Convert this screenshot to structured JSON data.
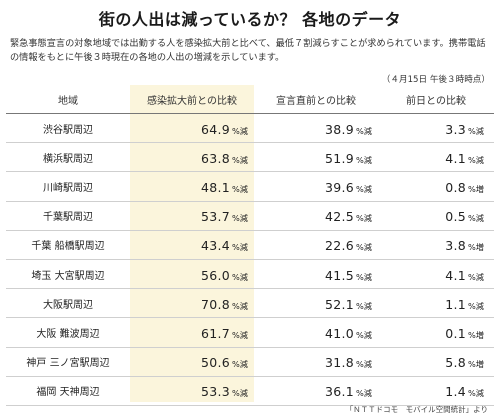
{
  "title": "街の人出は減っているか？ 各地のデータ",
  "lead": "緊急事態宣言の対象地域では出勤する人を感染拡大前と比べて、最低７割減らすことが求められています。携帯電話の情報をもとに午後３時現在の各地の人出の増減を示しています。",
  "as_of": "（４月15日 午後３時時点）",
  "table": {
    "headers": [
      "地域",
      "感染拡大前との比較",
      "宣言直前との比較",
      "前日との比較"
    ],
    "rows": [
      {
        "area": "渋谷駅周辺",
        "pre": "64.9",
        "pre_u": "%減",
        "decl": "38.9",
        "decl_u": "%減",
        "prev": "3.3",
        "prev_u": "%減"
      },
      {
        "area": "横浜駅周辺",
        "pre": "63.8",
        "pre_u": "%減",
        "decl": "51.9",
        "decl_u": "%減",
        "prev": "4.1",
        "prev_u": "%減"
      },
      {
        "area": "川崎駅周辺",
        "pre": "48.1",
        "pre_u": "%減",
        "decl": "39.6",
        "decl_u": "%減",
        "prev": "0.8",
        "prev_u": "%増"
      },
      {
        "area": "千葉駅周辺",
        "pre": "53.7",
        "pre_u": "%減",
        "decl": "42.5",
        "decl_u": "%減",
        "prev": "0.5",
        "prev_u": "%減"
      },
      {
        "area": "千葉 船橋駅周辺",
        "pre": "43.4",
        "pre_u": "%減",
        "decl": "22.6",
        "decl_u": "%減",
        "prev": "3.8",
        "prev_u": "%増"
      },
      {
        "area": "埼玉 大宮駅周辺",
        "pre": "56.0",
        "pre_u": "%減",
        "decl": "41.5",
        "decl_u": "%減",
        "prev": "4.1",
        "prev_u": "%減"
      },
      {
        "area": "大阪駅周辺",
        "pre": "70.8",
        "pre_u": "%減",
        "decl": "52.1",
        "decl_u": "%減",
        "prev": "1.1",
        "prev_u": "%減"
      },
      {
        "area": "大阪 難波周辺",
        "pre": "61.7",
        "pre_u": "%減",
        "decl": "41.0",
        "decl_u": "%減",
        "prev": "0.1",
        "prev_u": "%増"
      },
      {
        "area": "神戸 三ノ宮駅周辺",
        "pre": "50.6",
        "pre_u": "%減",
        "decl": "31.8",
        "decl_u": "%減",
        "prev": "5.8",
        "prev_u": "%増"
      },
      {
        "area": "福岡 天神周辺",
        "pre": "53.3",
        "pre_u": "%減",
        "decl": "36.1",
        "decl_u": "%減",
        "prev": "1.4",
        "prev_u": "%減"
      }
    ]
  },
  "source": "「ＮＴＴドコモ　モバイル空間統計」より",
  "colors": {
    "highlight": "#fbf5dc",
    "rule": "#cfcfcf",
    "text": "#222222"
  }
}
